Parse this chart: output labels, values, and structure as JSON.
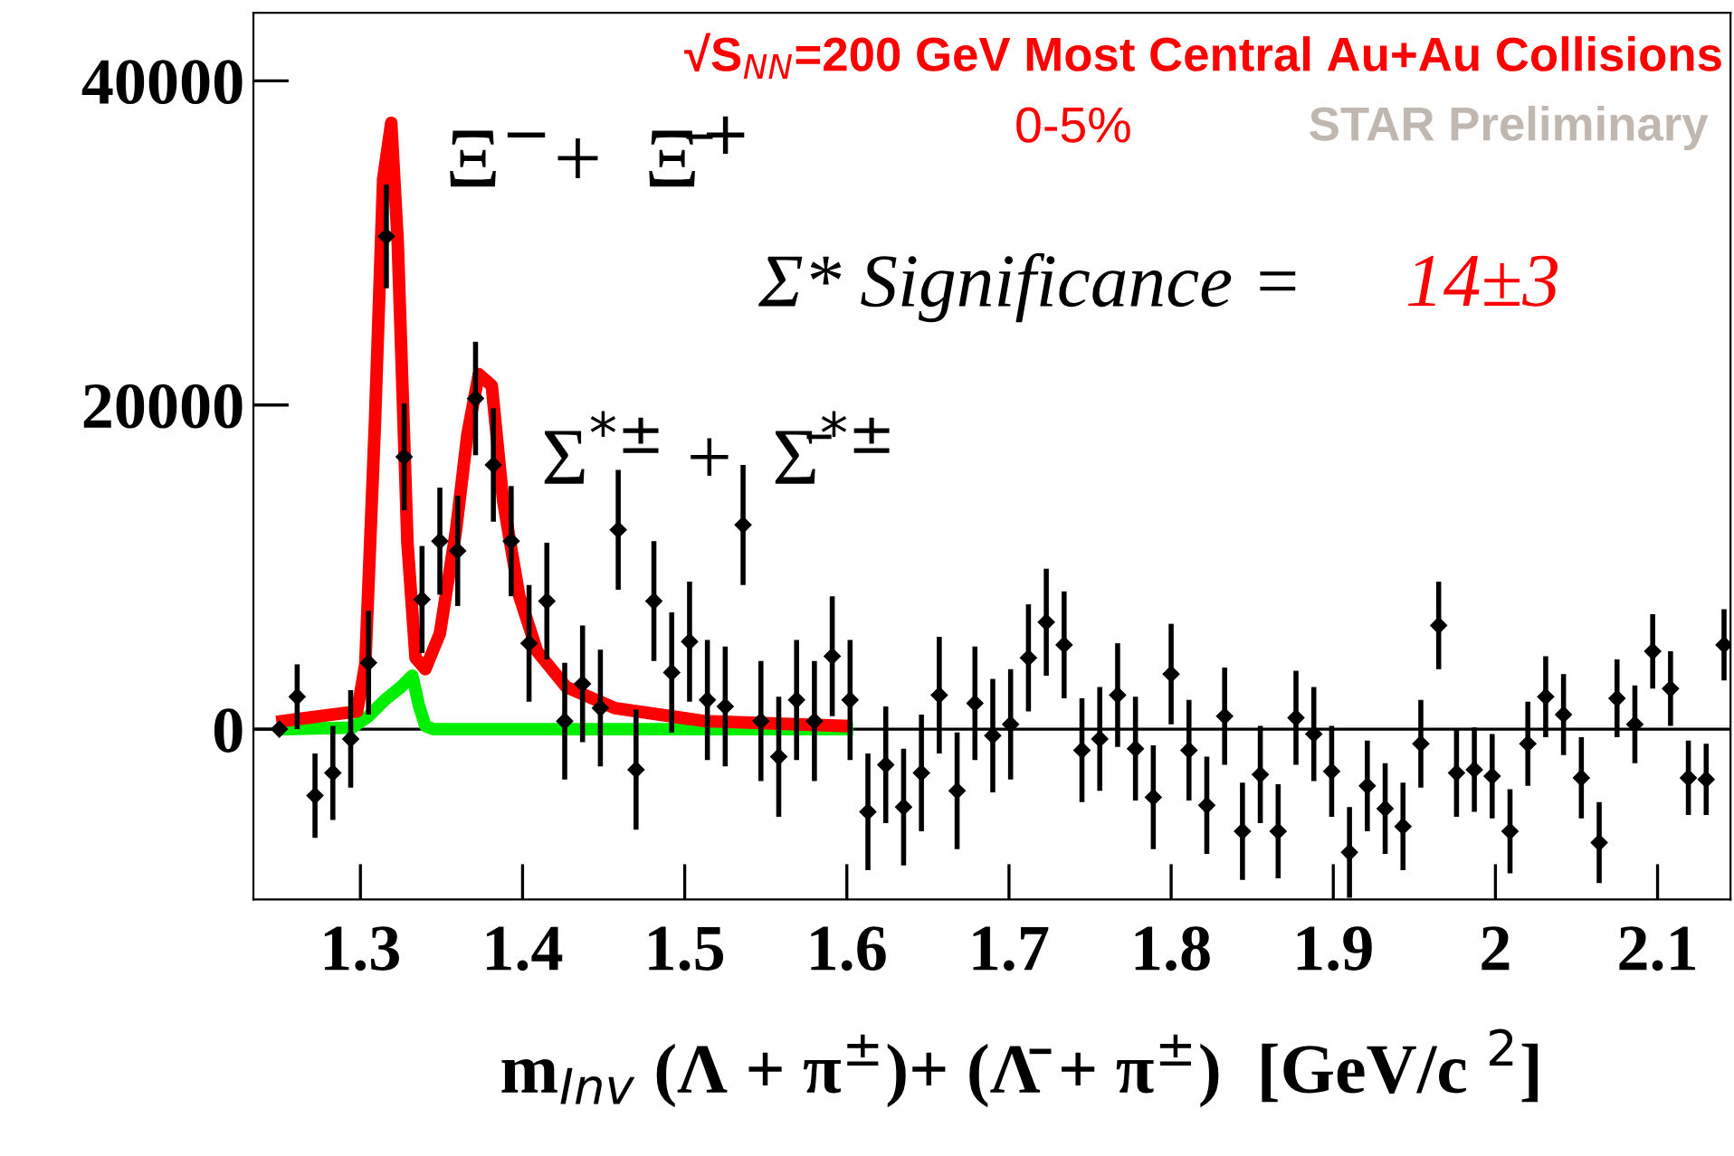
{
  "chart_data": {
    "type": "scatter",
    "xlabel": "m$_{Inv}$ (Λ + π$^{±}$)+ (Λ̄ + π$^{±}$)  [GeV/c $^{2}$]",
    "annotations": [
      "√S$_{NN}$=200 GeV Most Central Au+Au Collisions",
      "0-5%",
      "STAR Preliminary",
      "Ξ$^{−}$+  Ξ̄$^{+}$",
      "Σ* Significance =",
      "14±3",
      "Σ$^{*±}$ +  Σ̄$^{*±}$"
    ],
    "xlim": [
      1.234,
      2.145
    ],
    "ylim": [
      -10500,
      44200
    ],
    "xticks": [
      1.3,
      1.4,
      1.5,
      1.6,
      1.7,
      1.8,
      1.9,
      2,
      2.1
    ],
    "yticks": [
      0,
      20000,
      40000
    ],
    "grid": false,
    "legend": false,
    "ref_lines": [
      {
        "axis": "y",
        "value": 0,
        "color": "#000000",
        "line_style": "solid"
      }
    ],
    "series": [
      {
        "color": "#000000",
        "marker": "diamond",
        "x": [
          1.25,
          1.261,
          1.272,
          1.283,
          1.294,
          1.305,
          1.316,
          1.327,
          1.338,
          1.349,
          1.36,
          1.371,
          1.382,
          1.393,
          1.404,
          1.415,
          1.426,
          1.437,
          1.448,
          1.459,
          1.47,
          1.481,
          1.492,
          1.503,
          1.514,
          1.525,
          1.536,
          1.547,
          1.558,
          1.569,
          1.58,
          1.591,
          1.602,
          1.613,
          1.624,
          1.635,
          1.646,
          1.657,
          1.668,
          1.679,
          1.69,
          1.701,
          1.712,
          1.723,
          1.734,
          1.745,
          1.756,
          1.767,
          1.778,
          1.789,
          1.8,
          1.811,
          1.822,
          1.833,
          1.844,
          1.855,
          1.866,
          1.877,
          1.888,
          1.899,
          1.91,
          1.921,
          1.932,
          1.943,
          1.954,
          1.965,
          1.976,
          1.987,
          1.998,
          2.009,
          2.02,
          2.031,
          2.042,
          2.053,
          2.064,
          2.075,
          2.086,
          2.097,
          2.108,
          2.119,
          2.13,
          2.141
        ],
        "values": [
          0,
          2000,
          -4100,
          -2700,
          -600,
          4100,
          30400,
          16800,
          8000,
          11600,
          11000,
          20400,
          16300,
          11600,
          5300,
          7900,
          500,
          2800,
          1300,
          12300,
          -2500,
          7900,
          3500,
          5400,
          1800,
          1400,
          12600,
          500,
          -1700,
          1800,
          500,
          4500,
          1800,
          -5100,
          -2200,
          -4800,
          -2700,
          2100,
          -3800,
          1600,
          -400,
          300,
          4400,
          6600,
          5200,
          -1300,
          -600,
          2100,
          -1200,
          -4200,
          3400,
          -1300,
          -4700,
          800,
          -6300,
          -2800,
          -6300,
          700,
          -300,
          -2600,
          -7600,
          -3500,
          -4900,
          -6000,
          -900,
          6400,
          -2700,
          -2500,
          -2900,
          -6300,
          -900,
          2000,
          900,
          -3000,
          -7000,
          1900,
          300,
          4800,
          2500,
          -3000,
          -3100,
          5200
        ],
        "errors": [
          300,
          2000,
          2600,
          2900,
          3000,
          3200,
          3200,
          3300,
          3300,
          3300,
          3400,
          3500,
          3500,
          3400,
          3600,
          3600,
          3600,
          3600,
          3600,
          3700,
          3700,
          3700,
          3700,
          3700,
          3700,
          3700,
          3700,
          3700,
          3700,
          3700,
          3700,
          3700,
          3700,
          3600,
          3600,
          3600,
          3600,
          3600,
          3600,
          3500,
          3500,
          3400,
          3300,
          3300,
          3300,
          3200,
          3200,
          3200,
          3200,
          3200,
          3100,
          3100,
          3000,
          3000,
          3000,
          3000,
          2900,
          2900,
          2900,
          2800,
          2800,
          2800,
          2800,
          2700,
          2700,
          2700,
          2700,
          2600,
          2600,
          2600,
          2600,
          2500,
          2500,
          2500,
          2500,
          2400,
          2400,
          2300,
          2300,
          2300,
          2200,
          2200
        ]
      },
      {
        "type": "line",
        "color": "#00ee00",
        "marker": "none",
        "line_style": "solid",
        "x": [
          1.252,
          1.295,
          1.305,
          1.315,
          1.325,
          1.332,
          1.336,
          1.34,
          1.345,
          1.6
        ],
        "values": [
          0,
          100,
          800,
          1800,
          2600,
          3300,
          1500,
          200,
          0,
          0
        ]
      },
      {
        "type": "line",
        "color": "#ff0000",
        "marker": "none",
        "line_style": "solid",
        "x": [
          1.252,
          1.298,
          1.303,
          1.309,
          1.314,
          1.319,
          1.323,
          1.329,
          1.334,
          1.34,
          1.349,
          1.359,
          1.366,
          1.373,
          1.381,
          1.388,
          1.398,
          1.409,
          1.427,
          1.457,
          1.512,
          1.598
        ],
        "values": [
          500,
          1100,
          4000,
          19000,
          33900,
          37400,
          30100,
          11500,
          4400,
          3700,
          5900,
          12300,
          18200,
          21900,
          21200,
          14100,
          8200,
          4800,
          2600,
          1300,
          500,
          200
        ]
      }
    ]
  }
}
